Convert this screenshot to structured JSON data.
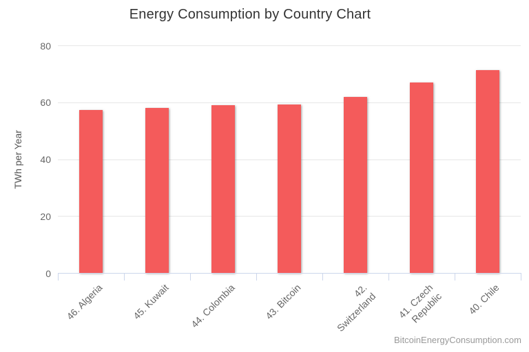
{
  "chart_data": {
    "type": "bar",
    "title": "Energy Consumption by Country Chart",
    "categories": [
      "46. Algeria",
      "45. Kuwait",
      "44. Colombia",
      "43. Bitcoin",
      "42.\nSwitzerland",
      "41. Czech\nRepublic",
      "40. Chile"
    ],
    "values": [
      57.4,
      57.9,
      58.9,
      59.1,
      61.9,
      67.0,
      71.4
    ],
    "xlabel": "",
    "ylabel": "TWh per Year",
    "ylim": [
      0,
      80
    ],
    "yticks": [
      0,
      20,
      40,
      60,
      80
    ],
    "grid": true,
    "legend": false,
    "credit": "BitcoinEnergyConsumption.com"
  },
  "colors": {
    "bar": "#f45b5b",
    "gridline": "#e6e6e6",
    "axis": "#ccd6eb",
    "title_text": "#333333",
    "label_text": "#666666",
    "credit_text": "#999999",
    "background": "#ffffff"
  }
}
